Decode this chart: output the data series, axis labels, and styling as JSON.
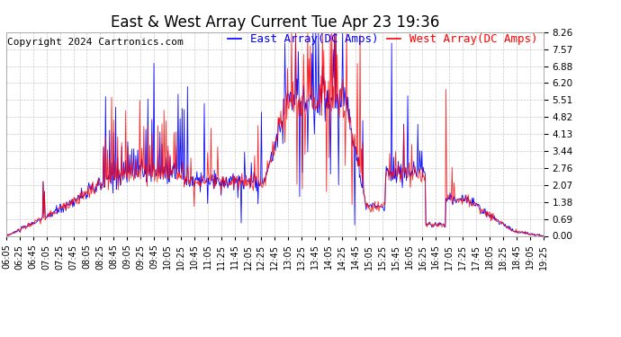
{
  "title": "East & West Array Current Tue Apr 23 19:36",
  "copyright": "Copyright 2024 Cartronics.com",
  "legend_east": "East Array(DC Amps)",
  "legend_west": "West Array(DC Amps)",
  "east_color": "blue",
  "west_color": "red",
  "background_color": "#ffffff",
  "grid_color": "#bbbbbb",
  "yticks": [
    0.0,
    0.69,
    1.38,
    2.07,
    2.76,
    3.44,
    4.13,
    4.82,
    5.51,
    6.2,
    6.88,
    7.57,
    8.26
  ],
  "ymax": 8.26,
  "ymin": 0.0,
  "x_start_min": 365,
  "x_end_min": 1165,
  "xtick_interval_min": 20,
  "title_fontsize": 12,
  "tick_fontsize": 7.5,
  "legend_fontsize": 9,
  "copyright_fontsize": 8
}
